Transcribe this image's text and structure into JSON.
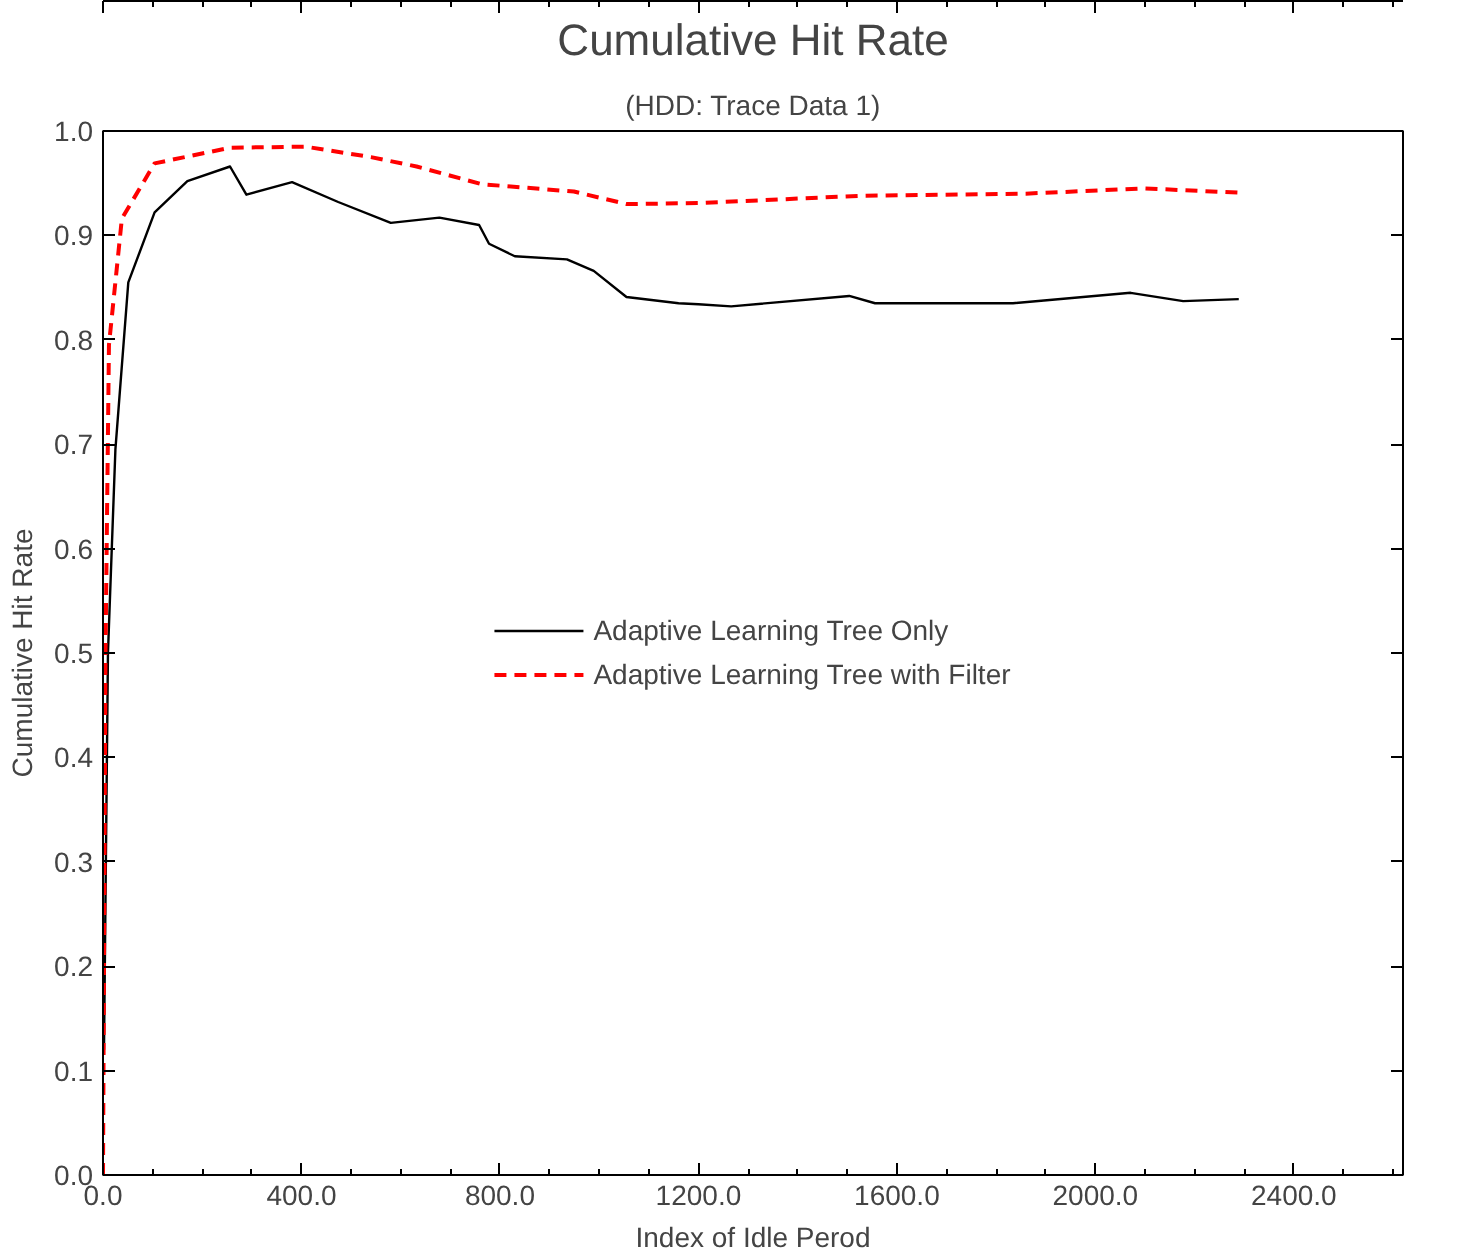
{
  "chart_data": {
    "type": "line",
    "title": "Cumulative Hit Rate",
    "subtitle": "(HDD: Trace Data 1)",
    "xlabel": "Index of Idle Perod",
    "ylabel": "Cumulative Hit Rate",
    "xlim": [
      0,
      2620
    ],
    "ylim": [
      0,
      1.0
    ],
    "xticks": [
      {
        "value": 0,
        "label": "0.0"
      },
      {
        "value": 400,
        "label": "400.0"
      },
      {
        "value": 800,
        "label": "800.0"
      },
      {
        "value": 1200,
        "label": "1200.0"
      },
      {
        "value": 1600,
        "label": "1600.0"
      },
      {
        "value": 2000,
        "label": "2000.0"
      },
      {
        "value": 2400,
        "label": "2400.0"
      }
    ],
    "yticks": [
      {
        "value": 0,
        "label": "0.0"
      },
      {
        "value": 0.1,
        "label": "0.1"
      },
      {
        "value": 0.2,
        "label": "0.2"
      },
      {
        "value": 0.3,
        "label": "0.3"
      },
      {
        "value": 0.4,
        "label": "0.4"
      },
      {
        "value": 0.5,
        "label": "0.5"
      },
      {
        "value": 0.6,
        "label": "0.6"
      },
      {
        "value": 0.7,
        "label": "0.7"
      },
      {
        "value": 0.8,
        "label": "0.8"
      },
      {
        "value": 0.9,
        "label": "0.9"
      },
      {
        "value": 1.0,
        "label": "1.0"
      }
    ],
    "grid": false,
    "legend": "center",
    "marker": "none",
    "series": [
      {
        "name": "Adaptive Learning Tree Only",
        "color": "#000000",
        "line_style": "solid",
        "x": [
          2,
          10,
          25,
          51,
          104,
          170,
          256,
          289,
          381,
          474,
          580,
          678,
          758,
          778,
          830,
          935,
          989,
          1055,
          1160,
          1200,
          1266,
          1504,
          1556,
          1834,
          2071,
          2177,
          2289
        ],
        "values": [
          0.12,
          0.5,
          0.695,
          0.855,
          0.922,
          0.952,
          0.966,
          0.939,
          0.951,
          0.932,
          0.912,
          0.917,
          0.91,
          0.892,
          0.88,
          0.877,
          0.866,
          0.841,
          0.835,
          0.834,
          0.832,
          0.842,
          0.835,
          0.835,
          0.845,
          0.837,
          0.839
        ]
      },
      {
        "name": "Adaptive Learning Tree with Filter",
        "color": "#ff0000",
        "line_style": "dashed",
        "x": [
          0,
          5,
          12,
          38,
          104,
          256,
          408,
          540,
          632,
          764,
          949,
          1055,
          1200,
          1530,
          1860,
          2098,
          2289
        ],
        "values": [
          0,
          0.5,
          0.795,
          0.916,
          0.969,
          0.984,
          0.985,
          0.975,
          0.966,
          0.949,
          0.942,
          0.93,
          0.931,
          0.938,
          0.94,
          0.945,
          0.941
        ]
      }
    ]
  }
}
